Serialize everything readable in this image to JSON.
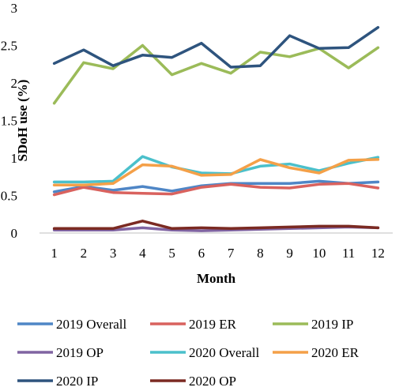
{
  "chart_data": {
    "type": "line",
    "title": "",
    "xlabel": "Month",
    "ylabel": "SDoH use (%)",
    "x": [
      1,
      2,
      3,
      4,
      5,
      6,
      7,
      8,
      9,
      10,
      11,
      12
    ],
    "ylim": [
      0,
      3
    ],
    "yticks": [
      0,
      0.5,
      1,
      1.5,
      2,
      2.5,
      3
    ],
    "ytick_labels": [
      "0",
      "0.5",
      "1",
      "1.5",
      "2",
      "2.5",
      "3"
    ],
    "grid": false,
    "legend_position": "bottom",
    "series": [
      {
        "name": "2019 Overall",
        "color": "#4f86c6",
        "values": [
          0.55,
          0.62,
          0.57,
          0.62,
          0.56,
          0.63,
          0.66,
          0.66,
          0.66,
          0.69,
          0.66,
          0.68
        ]
      },
      {
        "name": "2019 ER",
        "color": "#d9625e",
        "values": [
          0.51,
          0.61,
          0.54,
          0.53,
          0.52,
          0.61,
          0.65,
          0.61,
          0.6,
          0.65,
          0.66,
          0.6
        ]
      },
      {
        "name": "2019 IP",
        "color": "#9bbb59",
        "values": [
          1.73,
          2.27,
          2.19,
          2.5,
          2.11,
          2.26,
          2.13,
          2.41,
          2.35,
          2.46,
          2.2,
          2.47
        ]
      },
      {
        "name": "2019 OP",
        "color": "#8064a2",
        "values": [
          0.04,
          0.04,
          0.04,
          0.07,
          0.04,
          0.03,
          0.04,
          0.05,
          0.06,
          0.07,
          0.08,
          0.07
        ]
      },
      {
        "name": "2020 Overall",
        "color": "#4bc0cb",
        "values": [
          0.68,
          0.68,
          0.69,
          1.02,
          0.88,
          0.8,
          0.79,
          0.89,
          0.92,
          0.83,
          0.93,
          1.01
        ]
      },
      {
        "name": "2020 ER",
        "color": "#f4a048",
        "values": [
          0.64,
          0.64,
          0.66,
          0.91,
          0.89,
          0.77,
          0.78,
          0.98,
          0.87,
          0.8,
          0.97,
          0.98
        ]
      },
      {
        "name": "2020 IP",
        "color": "#2e547e",
        "values": [
          2.26,
          2.44,
          2.23,
          2.37,
          2.34,
          2.53,
          2.21,
          2.23,
          2.63,
          2.46,
          2.47,
          2.74
        ]
      },
      {
        "name": "2020 OP",
        "color": "#7b2a22",
        "values": [
          0.06,
          0.06,
          0.06,
          0.16,
          0.06,
          0.07,
          0.06,
          0.07,
          0.08,
          0.09,
          0.09,
          0.07
        ]
      }
    ]
  }
}
